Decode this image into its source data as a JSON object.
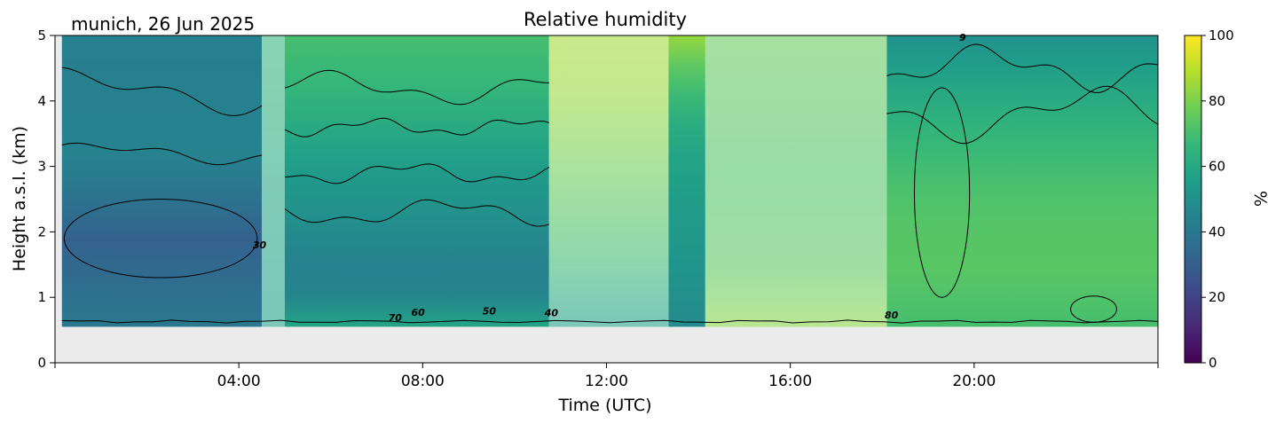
{
  "location_date": "munich, 26 Jun 2025",
  "chart_data": {
    "type": "heatmap",
    "title": "Relative humidity",
    "xlabel": "Time (UTC)",
    "ylabel": "Height a.s.l. (km)",
    "xlim": [
      0,
      24
    ],
    "ylim": [
      0,
      5
    ],
    "x_ticks": [
      {
        "value": 4,
        "label": "04:00"
      },
      {
        "value": 8,
        "label": "08:00"
      },
      {
        "value": 12,
        "label": "12:00"
      },
      {
        "value": 16,
        "label": "16:00"
      },
      {
        "value": 20,
        "label": "20:00"
      }
    ],
    "y_ticks": [
      {
        "value": 0,
        "label": "0"
      },
      {
        "value": 1,
        "label": "1"
      },
      {
        "value": 2,
        "label": "2"
      },
      {
        "value": 3,
        "label": "3"
      },
      {
        "value": 4,
        "label": "4"
      },
      {
        "value": 5,
        "label": "5"
      }
    ],
    "colorbar": {
      "label": "%",
      "range": [
        0,
        100
      ],
      "colormap": "viridis",
      "ticks": [
        {
          "value": 0,
          "label": "0"
        },
        {
          "value": 20,
          "label": "20"
        },
        {
          "value": 40,
          "label": "40"
        },
        {
          "value": 60,
          "label": "60"
        },
        {
          "value": 80,
          "label": "80"
        },
        {
          "value": 100,
          "label": "100"
        }
      ]
    },
    "no_data_below_km": 0.55,
    "no_data_color": "#ebebeb",
    "contour_labels": [
      {
        "text": "30",
        "x": 4.45,
        "y": 1.75
      },
      {
        "text": "70",
        "x": 7.4,
        "y": 0.64
      },
      {
        "text": "60",
        "x": 7.9,
        "y": 0.72
      },
      {
        "text": "50",
        "x": 9.45,
        "y": 0.74
      },
      {
        "text": "40",
        "x": 10.8,
        "y": 0.71
      },
      {
        "text": "80",
        "x": 18.2,
        "y": 0.68
      },
      {
        "text": "9",
        "x": 19.75,
        "y": 4.92
      }
    ],
    "shaded_periods": [
      {
        "start": 4.5,
        "end": 5.0
      },
      {
        "start": 10.75,
        "end": 13.35
      },
      {
        "start": 14.15,
        "end": 18.1
      }
    ],
    "segments": [
      {
        "start": 0.15,
        "end": 4.5,
        "profile": [
          {
            "h": 0.55,
            "v": 40
          },
          {
            "h": 1.2,
            "v": 36
          },
          {
            "h": 1.8,
            "v": 30
          },
          {
            "h": 2.5,
            "v": 38
          },
          {
            "h": 3.2,
            "v": 45
          },
          {
            "h": 3.8,
            "v": 44
          },
          {
            "h": 4.3,
            "v": 43
          },
          {
            "h": 5.0,
            "v": 44
          }
        ]
      },
      {
        "start": 4.5,
        "end": 5.0,
        "profile": [
          {
            "h": 0.55,
            "v": 55
          },
          {
            "h": 2.0,
            "v": 58
          },
          {
            "h": 3.5,
            "v": 62
          },
          {
            "h": 5.0,
            "v": 66
          }
        ]
      },
      {
        "start": 5.0,
        "end": 10.75,
        "profile": [
          {
            "h": 0.55,
            "v": 58
          },
          {
            "h": 1.0,
            "v": 46
          },
          {
            "h": 1.6,
            "v": 44
          },
          {
            "h": 2.2,
            "v": 50
          },
          {
            "h": 2.9,
            "v": 54
          },
          {
            "h": 3.5,
            "v": 60
          },
          {
            "h": 4.2,
            "v": 66
          },
          {
            "h": 5.0,
            "v": 70
          }
        ]
      },
      {
        "start": 10.75,
        "end": 13.35,
        "profile": [
          {
            "h": 0.55,
            "v": 55
          },
          {
            "h": 1.5,
            "v": 68
          },
          {
            "h": 3.0,
            "v": 78
          },
          {
            "h": 4.2,
            "v": 85
          },
          {
            "h": 5.0,
            "v": 86
          }
        ]
      },
      {
        "start": 13.35,
        "end": 14.15,
        "profile": [
          {
            "h": 0.55,
            "v": 48
          },
          {
            "h": 1.5,
            "v": 52
          },
          {
            "h": 2.5,
            "v": 55
          },
          {
            "h": 3.5,
            "v": 60
          },
          {
            "h": 4.4,
            "v": 72
          },
          {
            "h": 5.0,
            "v": 84
          }
        ]
      },
      {
        "start": 14.15,
        "end": 18.1,
        "profile": [
          {
            "h": 0.55,
            "v": 82
          },
          {
            "h": 1.5,
            "v": 74
          },
          {
            "h": 3.0,
            "v": 72
          },
          {
            "h": 4.2,
            "v": 75
          },
          {
            "h": 5.0,
            "v": 76
          }
        ]
      },
      {
        "start": 18.1,
        "end": 24.0,
        "profile": [
          {
            "h": 0.55,
            "v": 70
          },
          {
            "h": 1.5,
            "v": 74
          },
          {
            "h": 2.5,
            "v": 72
          },
          {
            "h": 3.5,
            "v": 66
          },
          {
            "h": 4.3,
            "v": 58
          },
          {
            "h": 5.0,
            "v": 50
          }
        ]
      }
    ]
  }
}
